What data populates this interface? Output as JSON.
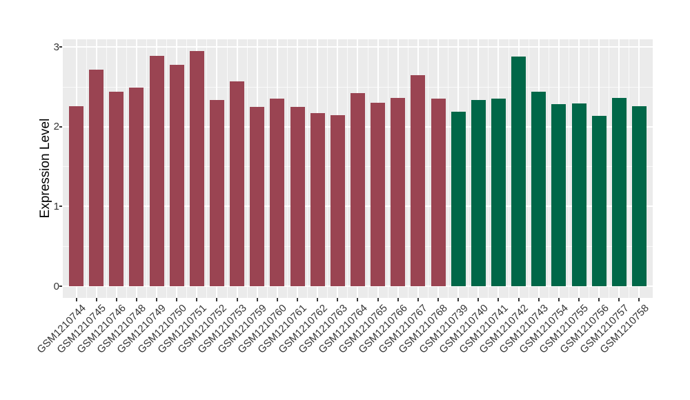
{
  "figure": {
    "background": "#FFFFFF",
    "panel_background": "#EBEBEB",
    "grid_color": "#FFFFFF",
    "tick_color": "#333333",
    "axis_text_color": "#333333"
  },
  "chart_data": {
    "type": "bar",
    "title": "",
    "xlabel": "",
    "ylabel": "Expression Level",
    "ylim": [
      -0.15,
      3.1
    ],
    "yticks": [
      0,
      1,
      2,
      3
    ],
    "yticks_minor": [
      0.5,
      1.5,
      2.5
    ],
    "grid": true,
    "legend": "none",
    "group_colors": {
      "group1": "#9A4452",
      "group2": "#006748"
    },
    "samples": [
      {
        "id": "GSM1210744",
        "value": 2.26,
        "group": "group1"
      },
      {
        "id": "GSM1210745",
        "value": 2.72,
        "group": "group1"
      },
      {
        "id": "GSM1210746",
        "value": 2.44,
        "group": "group1"
      },
      {
        "id": "GSM1210748",
        "value": 2.49,
        "group": "group1"
      },
      {
        "id": "GSM1210749",
        "value": 2.89,
        "group": "group1"
      },
      {
        "id": "GSM1210750",
        "value": 2.78,
        "group": "group1"
      },
      {
        "id": "GSM1210751",
        "value": 2.95,
        "group": "group1"
      },
      {
        "id": "GSM1210752",
        "value": 2.34,
        "group": "group1"
      },
      {
        "id": "GSM1210753",
        "value": 2.57,
        "group": "group1"
      },
      {
        "id": "GSM1210759",
        "value": 2.25,
        "group": "group1"
      },
      {
        "id": "GSM1210760",
        "value": 2.35,
        "group": "group1"
      },
      {
        "id": "GSM1210761",
        "value": 2.25,
        "group": "group1"
      },
      {
        "id": "GSM1210762",
        "value": 2.17,
        "group": "group1"
      },
      {
        "id": "GSM1210763",
        "value": 2.15,
        "group": "group1"
      },
      {
        "id": "GSM1210764",
        "value": 2.42,
        "group": "group1"
      },
      {
        "id": "GSM1210765",
        "value": 2.3,
        "group": "group1"
      },
      {
        "id": "GSM1210766",
        "value": 2.36,
        "group": "group1"
      },
      {
        "id": "GSM1210767",
        "value": 2.65,
        "group": "group1"
      },
      {
        "id": "GSM1210768",
        "value": 2.35,
        "group": "group1"
      },
      {
        "id": "GSM1210739",
        "value": 2.19,
        "group": "group2"
      },
      {
        "id": "GSM1210740",
        "value": 2.34,
        "group": "group2"
      },
      {
        "id": "GSM1210741",
        "value": 2.35,
        "group": "group2"
      },
      {
        "id": "GSM1210742",
        "value": 2.88,
        "group": "group2"
      },
      {
        "id": "GSM1210743",
        "value": 2.44,
        "group": "group2"
      },
      {
        "id": "GSM1210754",
        "value": 2.28,
        "group": "group2"
      },
      {
        "id": "GSM1210755",
        "value": 2.29,
        "group": "group2"
      },
      {
        "id": "GSM1210756",
        "value": 2.14,
        "group": "group2"
      },
      {
        "id": "GSM1210757",
        "value": 2.36,
        "group": "group2"
      },
      {
        "id": "GSM1210758",
        "value": 2.26,
        "group": "group2"
      }
    ]
  }
}
